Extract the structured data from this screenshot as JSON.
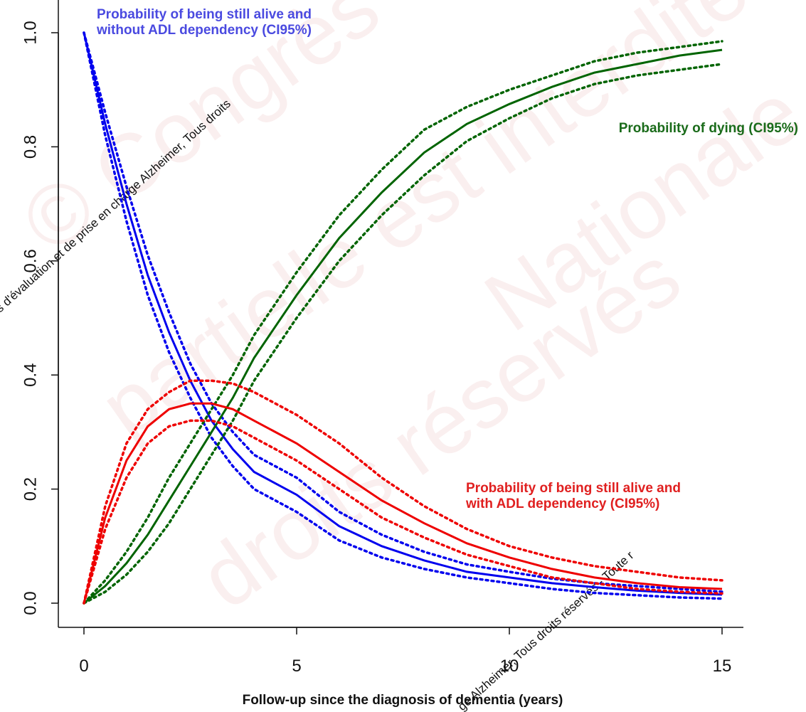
{
  "chart_data": {
    "type": "line",
    "xlabel": "Follow-up since the diagnosis of dementia (years)",
    "ylabel": "",
    "xlim": [
      0,
      15
    ],
    "ylim": [
      0,
      1
    ],
    "x_ticks": [
      0,
      5,
      10,
      15
    ],
    "x_tick_labels": [
      "0",
      "5",
      "10",
      "15"
    ],
    "y_ticks": [
      0,
      0.2,
      0.4,
      0.6,
      0.8,
      1.0
    ],
    "y_tick_labels": [
      "0.0",
      "0.2",
      "0.4",
      "0.6",
      "0.8",
      "1.0"
    ],
    "grid": false,
    "x": [
      0,
      0.5,
      1,
      1.5,
      2,
      2.5,
      3,
      3.5,
      4,
      5,
      6,
      7,
      8,
      9,
      10,
      11,
      12,
      13,
      14,
      15
    ],
    "series": [
      {
        "label": "Probability of being still alive and without ADL dependency (CI95%)",
        "label_lines": [
          "Probability of being still alive and",
          "without ADL dependency (CI95%)"
        ],
        "color": "#0000ee",
        "values": [
          1.0,
          0.84,
          0.7,
          0.575,
          0.475,
          0.39,
          0.32,
          0.27,
          0.23,
          0.19,
          0.135,
          0.1,
          0.075,
          0.055,
          0.045,
          0.035,
          0.028,
          0.022,
          0.018,
          0.015
        ],
        "ci_lower": [
          1.0,
          0.82,
          0.67,
          0.54,
          0.44,
          0.36,
          0.29,
          0.24,
          0.2,
          0.16,
          0.11,
          0.08,
          0.06,
          0.045,
          0.035,
          0.025,
          0.018,
          0.014,
          0.01,
          0.008
        ],
        "ci_upper": [
          1.0,
          0.86,
          0.73,
          0.61,
          0.51,
          0.42,
          0.35,
          0.3,
          0.26,
          0.22,
          0.16,
          0.12,
          0.09,
          0.068,
          0.055,
          0.043,
          0.035,
          0.03,
          0.025,
          0.02
        ]
      },
      {
        "label": "Probability of dying (CI95%)",
        "label_lines": [
          "Probability of dying (CI95%)"
        ],
        "color": "#006400",
        "values": [
          0.0,
          0.03,
          0.07,
          0.12,
          0.18,
          0.24,
          0.3,
          0.36,
          0.43,
          0.54,
          0.64,
          0.72,
          0.79,
          0.84,
          0.875,
          0.905,
          0.93,
          0.945,
          0.96,
          0.97
        ],
        "ci_lower": [
          0.0,
          0.02,
          0.05,
          0.09,
          0.14,
          0.2,
          0.26,
          0.32,
          0.39,
          0.5,
          0.6,
          0.68,
          0.75,
          0.81,
          0.85,
          0.885,
          0.91,
          0.925,
          0.935,
          0.945
        ],
        "ci_upper": [
          0.0,
          0.04,
          0.09,
          0.15,
          0.22,
          0.28,
          0.34,
          0.4,
          0.47,
          0.58,
          0.68,
          0.76,
          0.83,
          0.87,
          0.9,
          0.925,
          0.95,
          0.965,
          0.975,
          0.985
        ]
      },
      {
        "label": "Probability of being still alive and with ADL dependency (CI95%)",
        "label_lines": [
          "Probability of being still alive and",
          "with ADL dependency (CI95%)"
        ],
        "color": "#ee0000",
        "values": [
          0.0,
          0.15,
          0.25,
          0.31,
          0.34,
          0.35,
          0.35,
          0.34,
          0.32,
          0.28,
          0.23,
          0.18,
          0.14,
          0.105,
          0.08,
          0.06,
          0.045,
          0.035,
          0.028,
          0.025
        ],
        "ci_lower": [
          0.0,
          0.13,
          0.22,
          0.28,
          0.31,
          0.32,
          0.32,
          0.31,
          0.29,
          0.25,
          0.2,
          0.15,
          0.115,
          0.085,
          0.065,
          0.045,
          0.035,
          0.025,
          0.02,
          0.017
        ],
        "ci_upper": [
          0.0,
          0.17,
          0.28,
          0.34,
          0.37,
          0.39,
          0.39,
          0.385,
          0.37,
          0.33,
          0.28,
          0.22,
          0.17,
          0.13,
          0.1,
          0.08,
          0.065,
          0.055,
          0.045,
          0.04
        ]
      }
    ]
  },
  "watermark": {
    "big_lines": [
      "© Congrès",
      "partielle est interdite",
      "droits réservés",
      "Nationale"
    ],
    "diag_1": "s d'évaluation et de prise en charge Alzheimer, Tous droits",
    "diag_2": "ge Alzheimer, Tous droits réservés - Toute r"
  }
}
